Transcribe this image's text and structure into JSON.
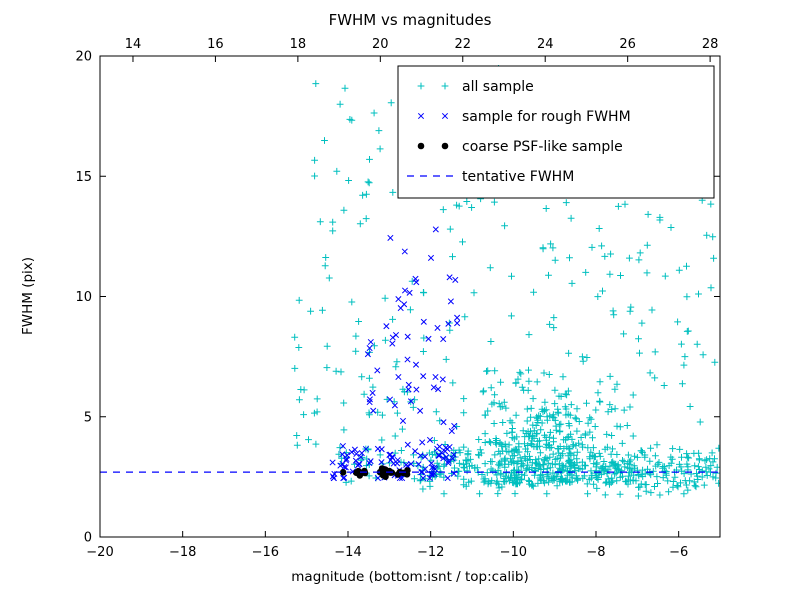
{
  "chart_data": {
    "type": "scatter",
    "title": "FWHM vs magnitudes",
    "xlabel": "magnitude (bottom:isnt / top:calib)",
    "ylabel": "FWHM (pix)",
    "x_axis_bottom": {
      "range": [
        -20,
        -5
      ],
      "ticks": [
        -20,
        -18,
        -16,
        -14,
        -12,
        -10,
        -8,
        -6
      ]
    },
    "x_axis_top": {
      "range": [
        13.2,
        28.24
      ],
      "ticks": [
        14,
        16,
        18,
        20,
        22,
        24,
        26,
        28
      ]
    },
    "y_axis": {
      "range": [
        0,
        20
      ],
      "ticks": [
        0,
        5,
        10,
        15,
        20
      ]
    },
    "grid": false,
    "legend_position": "upper right",
    "tentative_fwhm": 2.7,
    "colors": {
      "all_sample": "#00bfbf",
      "rough_fwhm": "#0000ff",
      "psf_sample": "#000000",
      "tentative_line": "#0000ff",
      "axis": "#000000",
      "background": "#ffffff"
    },
    "legend": [
      {
        "label": "all sample",
        "marker": "plus",
        "color": "#00bfbf"
      },
      {
        "label": "sample for rough FWHM",
        "marker": "x",
        "color": "#0000ff"
      },
      {
        "label": "coarse PSF-like sample",
        "marker": "dot",
        "color": "#000000"
      },
      {
        "label": "tentative FWHM",
        "marker": "dashed-line",
        "color": "#0000ff"
      }
    ],
    "series": [
      {
        "name": "all sample",
        "marker": "plus",
        "color": "#00bfbf",
        "seed": 11,
        "clusters": [
          {
            "count": 430,
            "x": {
              "dist": "normal",
              "mean": -9.35,
              "sd": 0.85,
              "min": -11.2,
              "max": -7.1
            },
            "y": {
              "dist": "halfnormal",
              "base": 2.15,
              "sd": 2.1,
              "max": 14.5
            }
          },
          {
            "count": 180,
            "x": {
              "dist": "uniform",
              "min": -8.1,
              "max": -5.0
            },
            "y": {
              "dist": "normal",
              "mean": 2.8,
              "sd": 0.5,
              "min": 1.6,
              "max": 4.6
            }
          },
          {
            "count": 55,
            "x": {
              "dist": "uniform",
              "min": -8.1,
              "max": -5.0
            },
            "y": {
              "dist": "uniform",
              "min": 4.6,
              "max": 14.3
            }
          },
          {
            "count": 140,
            "x": {
              "dist": "uniform",
              "min": -12.4,
              "max": -8.2
            },
            "y": {
              "dist": "normal",
              "mean": 2.85,
              "sd": 0.45,
              "min": 1.8,
              "max": 4.4
            }
          },
          {
            "count": 80,
            "x": {
              "dist": "uniform",
              "min": -15.3,
              "max": -11.3
            },
            "y": {
              "dist": "uniform",
              "min": 2.4,
              "max": 10
            }
          },
          {
            "count": 48,
            "x": {
              "dist": "uniform",
              "min": -15.0,
              "max": -11.0
            },
            "y": {
              "dist": "uniform",
              "min": 10,
              "max": 19.4
            }
          },
          {
            "count": 22,
            "x": {
              "dist": "uniform",
              "min": -13.6,
              "max": -9.9
            },
            "y": {
              "dist": "uniform",
              "min": 13.5,
              "max": 19.5
            }
          },
          {
            "count": 30,
            "x": {
              "dist": "normal",
              "mean": -9.3,
              "sd": 1.1,
              "min": -11.5,
              "max": -7.0
            },
            "y": {
              "dist": "uniform",
              "min": 8,
              "max": 14.5
            }
          },
          {
            "count": 25,
            "x": {
              "dist": "uniform",
              "min": -14.2,
              "max": -12.4
            },
            "y": {
              "dist": "normal",
              "mean": 3.0,
              "sd": 0.5,
              "min": 2.2,
              "max": 4.5
            }
          }
        ]
      },
      {
        "name": "sample for rough FWHM",
        "marker": "x",
        "color": "#0000ff",
        "seed": 23,
        "clusters": [
          {
            "count": 85,
            "x": {
              "dist": "uniform",
              "min": -14.4,
              "max": -11.3
            },
            "y": {
              "dist": "normal",
              "mean": 3.0,
              "sd": 0.45,
              "min": 2.45,
              "max": 4.3
            }
          },
          {
            "count": 50,
            "x": {
              "dist": "uniform",
              "min": -13.1,
              "max": -11.35
            },
            "y": {
              "dist": "uniform",
              "min": 3.5,
              "max": 13.0
            }
          },
          {
            "count": 8,
            "x": {
              "dist": "uniform",
              "min": -13.9,
              "max": -13.2
            },
            "y": {
              "dist": "uniform",
              "min": 4.5,
              "max": 8.5
            }
          }
        ]
      },
      {
        "name": "coarse PSF-like sample",
        "marker": "dot",
        "color": "#000000",
        "seed": 5,
        "clusters": [
          {
            "count": 24,
            "x": {
              "dist": "uniform",
              "min": -14.15,
              "max": -12.55
            },
            "y": {
              "dist": "normal",
              "mean": 2.68,
              "sd": 0.06,
              "min": 2.5,
              "max": 2.9
            }
          }
        ]
      }
    ]
  }
}
